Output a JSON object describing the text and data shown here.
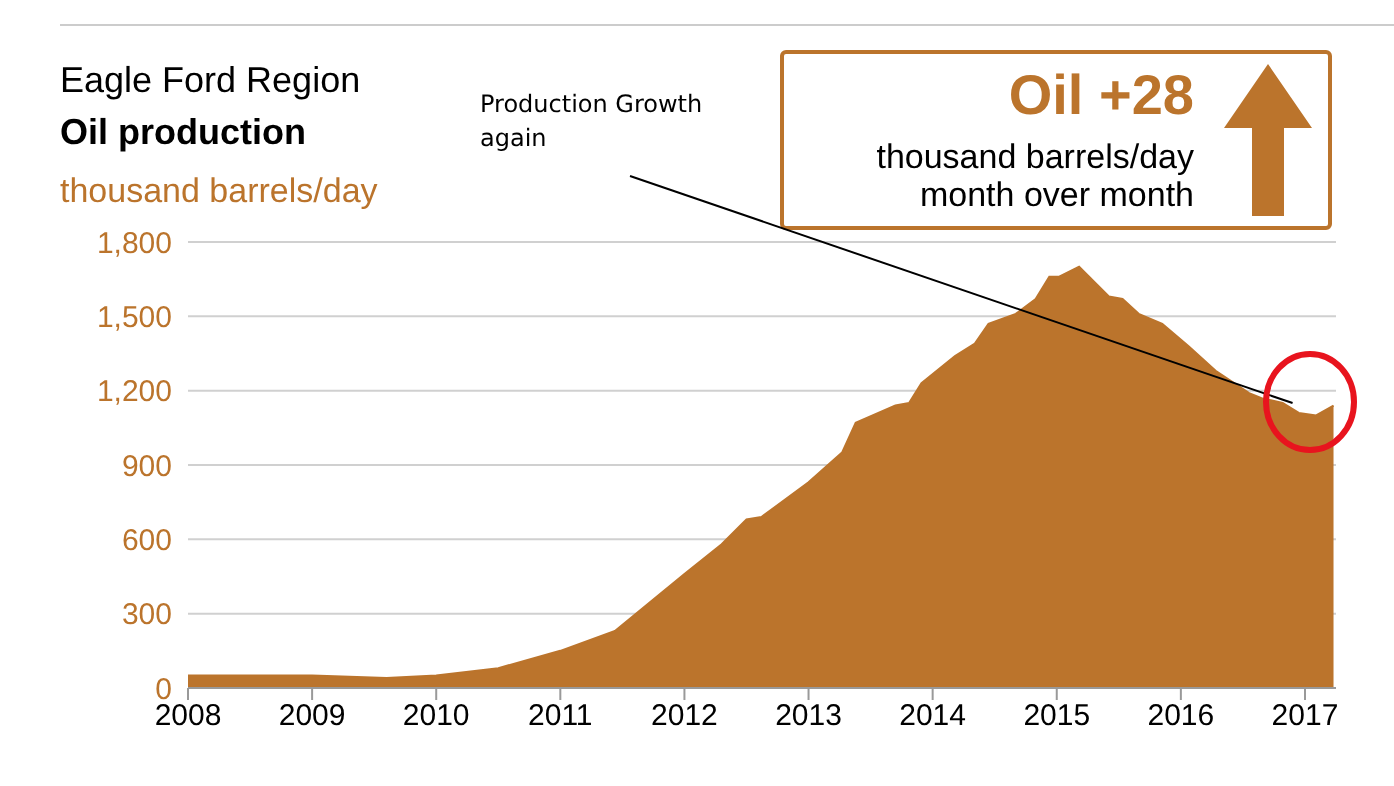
{
  "chart_data": {
    "type": "area",
    "title": "Eagle Ford Region",
    "subtitle": "Oil production",
    "ylabel": "thousand barrels/day",
    "annotations": [
      {
        "text": "Production Growth again",
        "x": 2016.9,
        "y": 1150
      },
      "Oil +28",
      "thousand barrels/day month over month"
    ],
    "x": [
      2008,
      2009,
      2009.6,
      2010,
      2010.5,
      2011,
      2011.44,
      2012,
      2012.3,
      2012.5,
      2012.62,
      2013,
      2013.27,
      2013.38,
      2013.7,
      2013.81,
      2013.91,
      2014.18,
      2014.34,
      2014.45,
      2014.67,
      2014.83,
      2014.94,
      2015.02,
      2015.18,
      2015.42,
      2015.53,
      2015.66,
      2015.85,
      2016.06,
      2016.28,
      2016.55,
      2016.65,
      2016.82,
      2016.95,
      2017.09,
      2017.23
    ],
    "series": [
      {
        "color": "#bb742c",
        "values": [
          50,
          50,
          40,
          50,
          80,
          150,
          230,
          460,
          580,
          680,
          690,
          830,
          950,
          1070,
          1140,
          1150,
          1230,
          1340,
          1390,
          1470,
          1510,
          1570,
          1660,
          1660,
          1700,
          1580,
          1570,
          1510,
          1470,
          1380,
          1280,
          1190,
          1170,
          1150,
          1110,
          1100,
          1140
        ]
      }
    ],
    "xlim": [
      2008,
      2017.25
    ],
    "xticks": [
      2008,
      2009,
      2010,
      2011,
      2012,
      2013,
      2014,
      2015,
      2016,
      2017
    ],
    "ylim": [
      0,
      1800
    ],
    "yticks": [
      0,
      300,
      600,
      900,
      {
        "value": 1200,
        "label": "1,200"
      },
      {
        "value": 1500,
        "label": "1,500"
      },
      {
        "value": 1800,
        "label": "1,800"
      }
    ],
    "grid": "y",
    "legend": false
  }
}
